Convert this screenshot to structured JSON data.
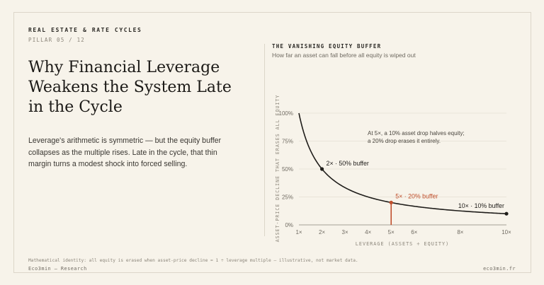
{
  "header": {
    "kicker": "REAL ESTATE & RATE CYCLES",
    "pillar": "PILLAR 05 / 12"
  },
  "headline": "Why Financial Leverage Weakens the System Late in the Cycle",
  "lede": "Leverage's arithmetic is symmetric — but the equity buffer collapses as the multiple rises. Late in the cycle, that thin margin turns a modest shock into forced selling.",
  "chart_data": {
    "type": "line",
    "title": "THE VANISHING EQUITY BUFFER",
    "subtitle": "How far an asset can fall before all equity is wiped out",
    "xlabel": "LEVERAGE (ASSETS ÷ EQUITY)",
    "ylabel": "ASSET-PRICE DECLINE THAT ERASES ALL EQUITY",
    "xlim": [
      1,
      10
    ],
    "ylim": [
      0,
      100
    ],
    "x_ticks": [
      1,
      2,
      3,
      4,
      5,
      6,
      8,
      10
    ],
    "x_tick_labels": [
      "1×",
      "2×",
      "3×",
      "4×",
      "5×",
      "6×",
      "8×",
      "10×"
    ],
    "y_ticks": [
      0,
      25,
      50,
      75,
      100
    ],
    "y_tick_labels": [
      "0%",
      "25%",
      "50%",
      "75%",
      "100%"
    ],
    "grid": true,
    "series": [
      {
        "x": [
          1,
          1.25,
          1.5,
          1.75,
          2,
          2.5,
          3,
          3.5,
          4,
          4.5,
          5,
          5.5,
          6,
          6.5,
          7,
          7.5,
          8,
          8.5,
          9,
          9.5,
          10
        ],
        "y": [
          100,
          80,
          66.7,
          57.1,
          50,
          40,
          33.3,
          28.6,
          25,
          22.2,
          20,
          18.2,
          16.7,
          15.4,
          14.3,
          13.3,
          12.5,
          11.8,
          11.1,
          10.5,
          10
        ]
      }
    ],
    "points": [
      {
        "x": 2,
        "y": 50,
        "label": "2× · 50% buffer",
        "highlight": false
      },
      {
        "x": 5,
        "y": 20,
        "label": "5× · 20% buffer",
        "highlight": true
      },
      {
        "x": 10,
        "y": 10,
        "label": "10× · 10% buffer",
        "highlight": false
      }
    ],
    "annotation": {
      "line1": "At 5×, a 10% asset drop halves equity;",
      "line2": "a 20% drop erases it entirely."
    },
    "colors": {
      "curve": "#1f1d1a",
      "highlight": "#c0502d",
      "grid": "#e4dfd3",
      "axis": "#8b857a"
    }
  },
  "footer": {
    "footnote": "Mathematical identity: all equity is erased when asset-price decline = 1 ÷ leverage multiple — illustrative, not market data.",
    "brand": "Eco3min — Research",
    "site": "eco3min.fr"
  }
}
